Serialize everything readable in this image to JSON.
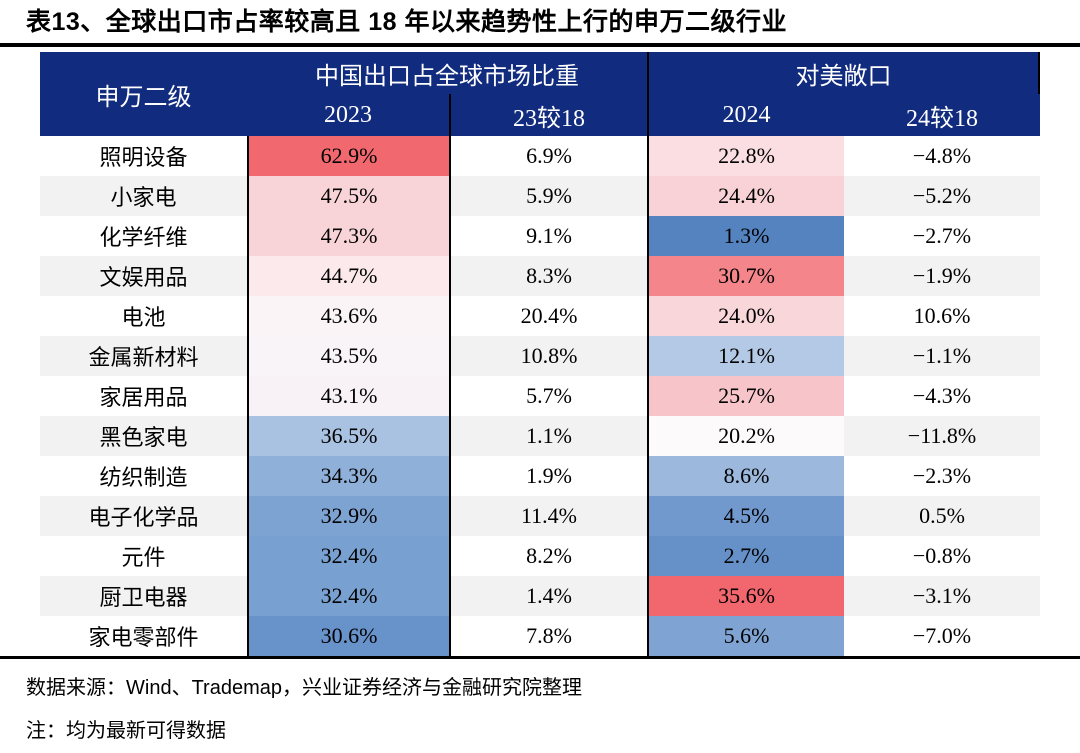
{
  "title": "表13、全球出口市占率较高且 18 年以来趋势性上行的申万二级行业",
  "colors": {
    "header_bg": "#112B7E",
    "header_text": "#FFFFFF",
    "row_stripe": "#F2F2F2",
    "rule": "#000000",
    "heat_max_red": "#F2666D",
    "heat_min_blue": "#5483C0"
  },
  "table": {
    "corner_header": "申万二级",
    "groups": [
      {
        "label": "中国出口占全球市场比重",
        "subcolumns": [
          "2023",
          "23较18"
        ]
      },
      {
        "label": "对美敞口",
        "subcolumns": [
          "2024",
          "24较18"
        ]
      }
    ],
    "rows": [
      {
        "name": "照明设备",
        "export_share_2023": "62.9%",
        "chg_23_vs_18": "6.9%",
        "us_exposure_2024": "22.8%",
        "chg_24_vs_18": "−4.8%",
        "color_2023": "#F2686F",
        "color_2024": "#FADEE1"
      },
      {
        "name": "小家电",
        "export_share_2023": "47.5%",
        "chg_23_vs_18": "5.9%",
        "us_exposure_2024": "24.4%",
        "chg_24_vs_18": "−5.2%",
        "color_2023": "#F8D3D7",
        "color_2024": "#F8D2D6"
      },
      {
        "name": "化学纤维",
        "export_share_2023": "47.3%",
        "chg_23_vs_18": "9.1%",
        "us_exposure_2024": "1.3%",
        "chg_24_vs_18": "−2.7%",
        "color_2023": "#F8D4D8",
        "color_2024": "#5483C0"
      },
      {
        "name": "文娱用品",
        "export_share_2023": "44.7%",
        "chg_23_vs_18": "8.3%",
        "us_exposure_2024": "30.7%",
        "chg_24_vs_18": "−1.9%",
        "color_2023": "#FBE9EB",
        "color_2024": "#F4858B"
      },
      {
        "name": "电池",
        "export_share_2023": "43.6%",
        "chg_23_vs_18": "20.4%",
        "us_exposure_2024": "24.0%",
        "chg_24_vs_18": "10.6%",
        "color_2023": "#FAF4F7",
        "color_2024": "#F9D6DA"
      },
      {
        "name": "金属新材料",
        "export_share_2023": "43.5%",
        "chg_23_vs_18": "10.8%",
        "us_exposure_2024": "12.1%",
        "chg_24_vs_18": "−1.1%",
        "color_2023": "#F9F4F8",
        "color_2024": "#B3C9E5"
      },
      {
        "name": "家居用品",
        "export_share_2023": "43.1%",
        "chg_23_vs_18": "5.7%",
        "us_exposure_2024": "25.7%",
        "chg_24_vs_18": "−4.3%",
        "color_2023": "#F8F2F7",
        "color_2024": "#F6C4C9"
      },
      {
        "name": "黑色家电",
        "export_share_2023": "36.5%",
        "chg_23_vs_18": "1.1%",
        "us_exposure_2024": "20.2%",
        "chg_24_vs_18": "−11.8%",
        "color_2023": "#A9C2E1",
        "color_2024": "#FDFAFB"
      },
      {
        "name": "纺织制造",
        "export_share_2023": "34.3%",
        "chg_23_vs_18": "1.9%",
        "us_exposure_2024": "8.6%",
        "chg_24_vs_18": "−2.3%",
        "color_2023": "#8FB0D9",
        "color_2024": "#9CB8DD"
      },
      {
        "name": "电子化学品",
        "export_share_2023": "32.9%",
        "chg_23_vs_18": "11.4%",
        "us_exposure_2024": "4.5%",
        "chg_24_vs_18": "0.5%",
        "color_2023": "#7DA3D2",
        "color_2024": "#7199CE"
      },
      {
        "name": "元件",
        "export_share_2023": "32.4%",
        "chg_23_vs_18": "8.2%",
        "us_exposure_2024": "2.7%",
        "chg_24_vs_18": "−0.8%",
        "color_2023": "#78A0D0",
        "color_2024": "#6590C8"
      },
      {
        "name": "厨卫电器",
        "export_share_2023": "32.4%",
        "chg_23_vs_18": "1.4%",
        "us_exposure_2024": "35.6%",
        "chg_24_vs_18": "−3.1%",
        "color_2023": "#78A0D0",
        "color_2024": "#F2666D"
      },
      {
        "name": "家电零部件",
        "export_share_2023": "30.6%",
        "chg_23_vs_18": "7.8%",
        "us_exposure_2024": "5.6%",
        "chg_24_vs_18": "−7.0%",
        "color_2023": "#6892CA",
        "color_2024": "#7FA4D3"
      }
    ]
  },
  "footer": {
    "source": "数据来源：Wind、Trademap，兴业证券经济与金融研究院整理",
    "note": "注：均为最新可得数据"
  }
}
